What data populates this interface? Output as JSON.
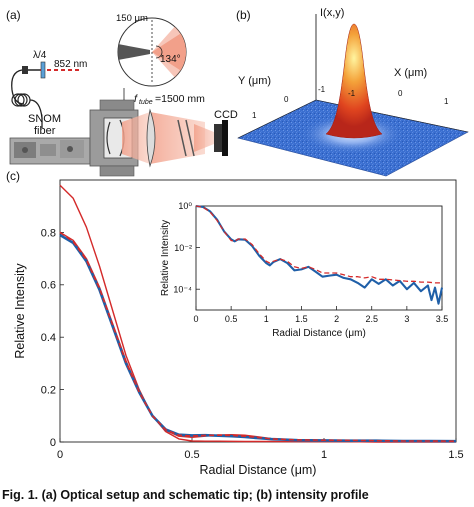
{
  "panels": {
    "a": {
      "label": "(a)",
      "wave_plate": "λ/4",
      "wavelength": "852 nm",
      "fiber_label_1": "SNOM",
      "fiber_label_2": "fiber",
      "tip_width": "150 μm",
      "tip_angle": "134°",
      "focal_label": "f",
      "focal_sub": "tube",
      "focal_value": "=1500 mm",
      "camera": "CCD"
    },
    "b": {
      "label": "(b)",
      "z_label": "I(x,y)",
      "y_label": "Y (μm)",
      "x_label": "X (μm)",
      "y_ticks": [
        "-1",
        "0",
        "1"
      ],
      "x_ticks": [
        "-1",
        "0",
        "1"
      ]
    },
    "c": {
      "label": "(c)"
    }
  },
  "caption": "Fig. 1. (a) Optical setup and schematic tip; (b) intensity profile",
  "colors": {
    "red": "#d42a2a",
    "blue": "#1f5fa8",
    "surface": "#3a6fd0"
  },
  "chart_data": [
    {
      "type": "line",
      "title": "",
      "xlabel": "Radial Distance (μm)",
      "ylabel": "Relative Intensity",
      "xlim": [
        0,
        1.5
      ],
      "ylim": [
        0,
        1.0
      ],
      "xticks": [
        "0",
        "0.5",
        "1",
        "1.5"
      ],
      "yticks": [
        "0",
        "0.2",
        "0.4",
        "0.6",
        "0.8"
      ],
      "grid": false,
      "series": [
        {
          "style": "red-solid",
          "x": [
            0,
            0.05,
            0.1,
            0.15,
            0.2,
            0.25,
            0.3,
            0.35,
            0.4,
            0.45,
            0.5,
            0.55,
            0.6,
            0.7,
            0.8,
            0.9,
            1.0,
            1.1,
            1.2,
            1.3,
            1.4,
            1.5
          ],
          "y": [
            0.98,
            0.93,
            0.82,
            0.67,
            0.5,
            0.33,
            0.2,
            0.1,
            0.04,
            0.012,
            0.004,
            0.003,
            0.003,
            0.002,
            0.002,
            0.001,
            0.001,
            0.001,
            0.0,
            0.0,
            0.0,
            0.0
          ]
        },
        {
          "style": "red-solid",
          "x": [
            0,
            0.05,
            0.1,
            0.15,
            0.2,
            0.25,
            0.3,
            0.35,
            0.4,
            0.45,
            0.5,
            0.55,
            0.6,
            0.65,
            0.7,
            0.75,
            0.8,
            0.9,
            1.0,
            1.1,
            1.2,
            1.3,
            1.4,
            1.5
          ],
          "y": [
            0.8,
            0.77,
            0.7,
            0.59,
            0.45,
            0.31,
            0.19,
            0.1,
            0.045,
            0.022,
            0.018,
            0.022,
            0.027,
            0.028,
            0.026,
            0.02,
            0.013,
            0.008,
            0.007,
            0.006,
            0.005,
            0.004,
            0.004,
            0.003
          ]
        },
        {
          "style": "blue-solid",
          "x": [
            0,
            0.05,
            0.1,
            0.15,
            0.2,
            0.25,
            0.3,
            0.35,
            0.4,
            0.45,
            0.5,
            0.55,
            0.6,
            0.65,
            0.7,
            0.75,
            0.8,
            0.9,
            1.0,
            1.1,
            1.2,
            1.3,
            1.4,
            1.5
          ],
          "y": [
            0.79,
            0.76,
            0.69,
            0.58,
            0.44,
            0.3,
            0.19,
            0.1,
            0.048,
            0.028,
            0.025,
            0.026,
            0.024,
            0.022,
            0.019,
            0.015,
            0.011,
            0.007,
            0.006,
            0.005,
            0.005,
            0.004,
            0.004,
            0.003
          ]
        },
        {
          "style": "red-dashed",
          "x": [
            0,
            0.05,
            0.1,
            0.15,
            0.2,
            0.25,
            0.3,
            0.35,
            0.4,
            0.45,
            0.5,
            0.55,
            0.6,
            0.65,
            0.7,
            0.75,
            0.8,
            0.9,
            1.0,
            1.1,
            1.2,
            1.3,
            1.4,
            1.5
          ],
          "y": [
            0.8,
            0.765,
            0.695,
            0.585,
            0.445,
            0.305,
            0.19,
            0.1,
            0.047,
            0.026,
            0.023,
            0.025,
            0.026,
            0.025,
            0.022,
            0.017,
            0.012,
            0.008,
            0.007,
            0.006,
            0.005,
            0.004,
            0.004,
            0.003
          ]
        }
      ]
    },
    {
      "type": "line",
      "title": "",
      "xlabel": "Radial Distance (μm)",
      "ylabel": "Relative Intensity",
      "xlim": [
        0,
        3.5
      ],
      "ylim": [
        1e-05,
        1
      ],
      "yscale": "log",
      "xticks": [
        "0",
        "0.5",
        "1",
        "1.5",
        "2",
        "2.5",
        "3",
        "3.5"
      ],
      "yticks": [
        "10⁰",
        "10⁻²",
        "10⁻⁴"
      ],
      "grid": false,
      "series": [
        {
          "style": "blue-solid",
          "x": [
            0,
            0.1,
            0.2,
            0.3,
            0.4,
            0.5,
            0.55,
            0.6,
            0.7,
            0.8,
            0.9,
            1.0,
            1.05,
            1.1,
            1.2,
            1.3,
            1.4,
            1.5,
            1.6,
            1.7,
            1.8,
            1.9,
            2.0,
            2.1,
            2.2,
            2.3,
            2.4,
            2.5,
            2.6,
            2.7,
            2.8,
            2.9,
            3.0,
            3.1,
            3.2,
            3.3,
            3.35,
            3.4,
            3.45,
            3.5
          ],
          "y": [
            1.0,
            0.9,
            0.55,
            0.22,
            0.06,
            0.025,
            0.02,
            0.025,
            0.024,
            0.012,
            0.004,
            0.0018,
            0.0014,
            0.002,
            0.0028,
            0.0018,
            0.0008,
            0.0009,
            0.0012,
            0.0007,
            0.0004,
            0.00045,
            0.0005,
            0.00035,
            0.0003,
            0.0002,
            0.00012,
            0.0003,
            0.00018,
            0.0003,
            0.00015,
            0.00025,
            0.0001,
            0.0002,
            8e-05,
            0.00015,
            3e-05,
            0.00012,
            2e-05,
            0.00012
          ]
        },
        {
          "style": "red-dashed",
          "x": [
            0,
            0.1,
            0.2,
            0.3,
            0.4,
            0.5,
            0.55,
            0.6,
            0.7,
            0.8,
            0.9,
            1.0,
            1.05,
            1.1,
            1.2,
            1.3,
            1.4,
            1.5,
            1.6,
            1.7,
            1.8,
            1.9,
            2.0,
            2.1,
            2.2,
            2.3,
            2.4,
            2.5,
            2.6,
            2.7,
            2.8,
            2.9,
            3.0,
            3.1,
            3.2,
            3.3,
            3.4,
            3.5
          ],
          "y": [
            1.0,
            0.88,
            0.52,
            0.2,
            0.06,
            0.022,
            0.02,
            0.026,
            0.026,
            0.014,
            0.005,
            0.0022,
            0.0018,
            0.0022,
            0.0028,
            0.0022,
            0.0012,
            0.001,
            0.0012,
            0.0009,
            0.0006,
            0.0006,
            0.0006,
            0.0005,
            0.0004,
            0.0004,
            0.00035,
            0.0004,
            0.0003,
            0.0003,
            0.00028,
            0.00026,
            0.00024,
            0.00024,
            0.00022,
            0.00022,
            0.0002,
            0.0002
          ]
        }
      ]
    }
  ]
}
